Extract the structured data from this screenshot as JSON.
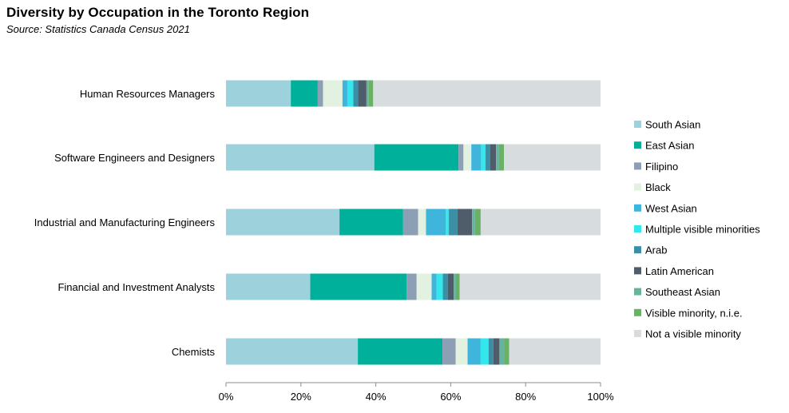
{
  "chart_data": {
    "type": "bar",
    "orientation": "horizontal",
    "stacked": true,
    "normalized": true,
    "title": "Diversity by Occupation in the Toronto Region",
    "subtitle": "Source: Statistics Canada Census 2021",
    "xlabel": "",
    "ylabel": "",
    "xlim": [
      0,
      100
    ],
    "xticks": [
      "0%",
      "20%",
      "40%",
      "60%",
      "80%",
      "100%"
    ],
    "xtick_values": [
      0,
      20,
      40,
      60,
      80,
      100
    ],
    "grid": false,
    "legend_position": "right",
    "categories": [
      "Human Resources Managers",
      "Software Engineers and Designers",
      "Industrial and Manufacturing Engineers",
      "Financial and Investment Analysts",
      "Chemists"
    ],
    "series": [
      {
        "name": "South Asian",
        "color": "#9dd1dc",
        "values": [
          17.3,
          39.6,
          30.3,
          22.5,
          35.2
        ]
      },
      {
        "name": "East Asian",
        "color": "#00b09a",
        "values": [
          7.2,
          22.5,
          17.0,
          25.7,
          22.6
        ]
      },
      {
        "name": "Filipino",
        "color": "#8d9fb5",
        "values": [
          1.4,
          1.3,
          4.0,
          2.7,
          3.5
        ]
      },
      {
        "name": "Black",
        "color": "#e3f1e1",
        "values": [
          5.2,
          2.1,
          2.1,
          4.0,
          3.2
        ]
      },
      {
        "name": "West Asian",
        "color": "#40b5db",
        "values": [
          1.3,
          2.6,
          5.3,
          1.3,
          3.5
        ]
      },
      {
        "name": "Multiple visible minorities",
        "color": "#33e8ec",
        "values": [
          1.6,
          1.2,
          0.8,
          1.7,
          2.1
        ]
      },
      {
        "name": "Arab",
        "color": "#3a8fa5",
        "values": [
          1.3,
          1.2,
          2.3,
          1.3,
          1.3
        ]
      },
      {
        "name": "Latin American",
        "color": "#4f5d6b",
        "values": [
          2.2,
          1.6,
          3.9,
          1.6,
          1.6
        ]
      },
      {
        "name": "Southeast Asian",
        "color": "#67b39d",
        "values": [
          0.6,
          0.8,
          0.8,
          0.6,
          1.3
        ]
      },
      {
        "name": "Visible minority, n.i.e.",
        "color": "#6ab165",
        "values": [
          1.2,
          1.3,
          1.5,
          1.0,
          1.3
        ]
      },
      {
        "name": "Not a visible minority",
        "color": "#d7dcde",
        "values": [
          60.7,
          25.8,
          32.0,
          37.6,
          24.4
        ]
      }
    ]
  }
}
